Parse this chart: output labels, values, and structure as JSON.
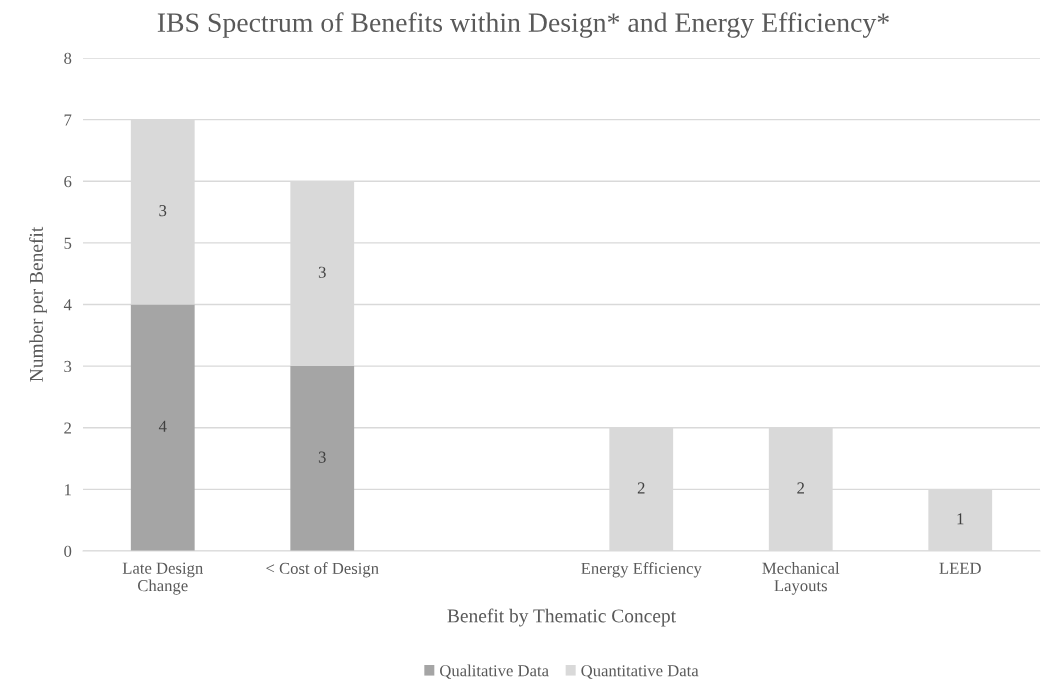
{
  "chart_data": {
    "type": "bar",
    "stacked": true,
    "title": "IBS Spectrum of Benefits within Design* and Energy Efficiency*",
    "xlabel": "Benefit by Thematic Concept",
    "ylabel": "Number per Benefit",
    "categories": [
      "Late Design\nChange",
      "< Cost of Design",
      null,
      "Energy Efficiency",
      "Mechanical\nLayouts",
      "LEED"
    ],
    "series": [
      {
        "name": "Qualitative Data",
        "color": "#a5a5a5",
        "values": [
          4,
          3,
          null,
          null,
          null,
          null
        ]
      },
      {
        "name": "Quantitative Data",
        "color": "#d9d9d9",
        "values": [
          3,
          3,
          null,
          2,
          2,
          1
        ]
      }
    ],
    "ylim": [
      0,
      8
    ],
    "yticks": [
      0,
      1,
      2,
      3,
      4,
      5,
      6,
      7,
      8
    ],
    "grid": "y",
    "legend": "bottom",
    "data_labels": true
  }
}
